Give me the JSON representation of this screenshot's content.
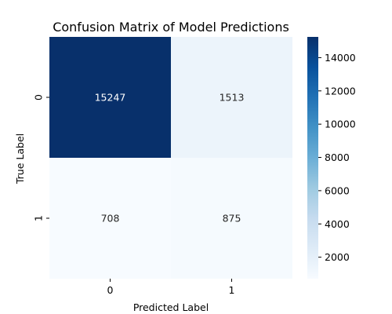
{
  "chart_data": {
    "type": "heatmap",
    "title": "Confusion Matrix of Model Predictions",
    "xlabel": "Predicted Label",
    "ylabel": "True Label",
    "x_categories": [
      "0",
      "1"
    ],
    "y_categories": [
      "0",
      "1"
    ],
    "values": [
      [
        15247,
        1513
      ],
      [
        708,
        875
      ]
    ],
    "colormap": "Blues",
    "color_range": [
      708,
      15247
    ],
    "colorbar_ticks": [
      2000,
      4000,
      6000,
      8000,
      10000,
      12000,
      14000
    ],
    "colorbar_tick_labels": [
      "2000",
      "4000",
      "6000",
      "8000",
      "10000",
      "12000",
      "14000"
    ],
    "light_text_color": "#ffffff",
    "dark_text_color": "#262626"
  }
}
